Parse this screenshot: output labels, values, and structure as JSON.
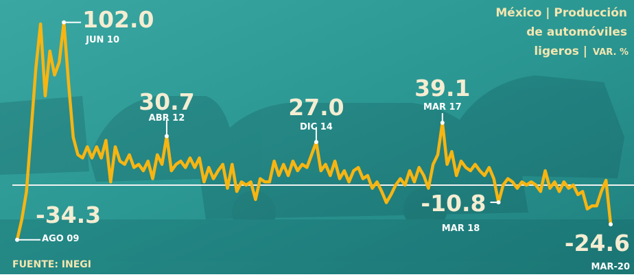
{
  "chart_data": {
    "type": "line",
    "title": [
      "México | Producción",
      "de automóviles",
      "ligeros |"
    ],
    "unit": "VAR. %",
    "source": "FUENTE: INEGI",
    "categories": [
      "AGO 09",
      null,
      null,
      null,
      null,
      null,
      null,
      null,
      null,
      null,
      "JUN 10",
      null,
      null,
      null,
      null,
      null,
      null,
      null,
      null,
      null,
      null,
      null,
      null,
      null,
      null,
      null,
      null,
      null,
      null,
      null,
      null,
      null,
      "ABR 12",
      null,
      null,
      null,
      null,
      null,
      null,
      null,
      null,
      null,
      null,
      null,
      null,
      null,
      null,
      null,
      null,
      null,
      null,
      null,
      null,
      null,
      null,
      null,
      null,
      null,
      null,
      null,
      null,
      null,
      null,
      null,
      "DIC 14",
      null,
      null,
      null,
      null,
      null,
      null,
      null,
      null,
      null,
      null,
      null,
      null,
      null,
      null,
      null,
      null,
      null,
      null,
      null,
      null,
      null,
      null,
      null,
      null,
      null,
      null,
      "MAR 17",
      null,
      null,
      null,
      null,
      null,
      null,
      null,
      null,
      null,
      null,
      null,
      "MAR 18",
      null,
      null,
      null,
      null,
      null,
      null,
      null,
      null,
      null,
      null,
      null,
      null,
      null,
      null,
      null,
      null,
      null,
      null,
      null,
      null,
      null,
      null,
      null,
      "MAR-20"
    ],
    "series": [
      {
        "name": null,
        "color": "#f7b512",
        "values": [
          -34.3,
          -21.5,
          -4,
          34,
          73,
          101,
          56,
          84,
          69,
          77,
          102.0,
          64,
          30,
          19,
          17,
          24,
          17,
          24,
          17,
          28,
          2,
          24,
          15,
          13,
          19,
          11,
          13,
          9,
          15,
          4,
          19,
          13,
          30.7,
          9,
          13,
          15,
          11,
          17,
          11,
          17,
          2,
          11,
          4,
          9,
          13,
          -2,
          13,
          -4,
          2,
          0,
          2,
          -9,
          4,
          2,
          2,
          15,
          6,
          13,
          6,
          15,
          9,
          13,
          11,
          19,
          27.0,
          9,
          13,
          6,
          15,
          4,
          9,
          2,
          9,
          11,
          4,
          6,
          -2,
          2,
          -4,
          -11,
          -6,
          0,
          4,
          0,
          9,
          2,
          11,
          6,
          -2,
          13,
          19,
          39.1,
          13,
          21,
          6,
          15,
          11,
          9,
          13,
          9,
          6,
          11,
          4,
          -10.8,
          0,
          4,
          2,
          -2,
          2,
          0,
          2,
          0,
          -4,
          9,
          -2,
          2,
          -4,
          2,
          -2,
          0,
          -6,
          -4,
          -15,
          -13,
          -13,
          -4,
          3,
          -24.6
        ],
        "value_labels": [
          "-34.3",
          null,
          null,
          null,
          null,
          null,
          null,
          null,
          null,
          null,
          "102.0",
          null,
          null,
          null,
          null,
          null,
          null,
          null,
          null,
          null,
          null,
          null,
          null,
          null,
          null,
          null,
          null,
          null,
          null,
          null,
          null,
          null,
          "30.7",
          null,
          null,
          null,
          null,
          null,
          null,
          null,
          null,
          null,
          null,
          null,
          null,
          null,
          null,
          null,
          null,
          null,
          null,
          null,
          null,
          null,
          null,
          null,
          null,
          null,
          null,
          null,
          null,
          null,
          null,
          null,
          "27.0",
          null,
          null,
          null,
          null,
          null,
          null,
          null,
          null,
          null,
          null,
          null,
          null,
          null,
          null,
          null,
          null,
          null,
          null,
          null,
          null,
          null,
          null,
          null,
          null,
          null,
          null,
          "39.1",
          null,
          null,
          null,
          null,
          null,
          null,
          null,
          null,
          null,
          null,
          null,
          "-10.8",
          null,
          null,
          null,
          null,
          null,
          null,
          null,
          null,
          null,
          null,
          null,
          null,
          null,
          null,
          null,
          null,
          null,
          null,
          null,
          null,
          null,
          null,
          null,
          "-24.6"
        ]
      }
    ],
    "ylim": [
      -40,
      107
    ],
    "reference_line": 0
  }
}
